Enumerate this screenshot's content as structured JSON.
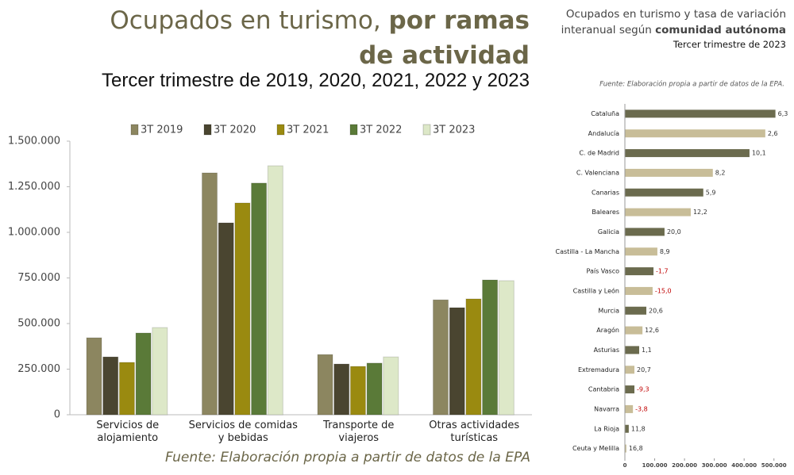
{
  "chart_data": [
    {
      "type": "bar",
      "title": "Ocupados en turismo,",
      "title_bold": "por ramas de actividad",
      "subtitle": "Tercer trimestre de 2019, 2020, 2021, 2022 y 2023",
      "source": "Fuente: Elaboración propia a partir de datos de la EPA",
      "categories": [
        "Servicios de alojamiento",
        "Servicios de comidas y bebidas",
        "Transporte de viajeros",
        "Otras actividades turísticas"
      ],
      "series": [
        {
          "name": "3T 2019",
          "color": "#8c8660",
          "values": [
            422000,
            1326000,
            330000,
            630000
          ]
        },
        {
          "name": "3T 2020",
          "color": "#4a4530",
          "values": [
            317000,
            1052000,
            278000,
            587000
          ]
        },
        {
          "name": "3T 2021",
          "color": "#9a8a10",
          "values": [
            287000,
            1161000,
            265000,
            635000
          ]
        },
        {
          "name": "3T 2022",
          "color": "#5a7a38",
          "values": [
            448000,
            1270000,
            283000,
            739000
          ]
        },
        {
          "name": "3T 2023",
          "color": "#dde8c8",
          "values": [
            478000,
            1365000,
            317000,
            735000
          ]
        }
      ],
      "ylim": [
        0,
        1500000
      ],
      "yticks": [
        0,
        {
          "value": 250000,
          "label": "250.000"
        },
        {
          "value": 500000,
          "label": "500.000"
        },
        {
          "value": 750000,
          "label": "750.000"
        },
        {
          "value": 1000000,
          "label": "1.000.000"
        },
        {
          "value": 1250000,
          "label": "1.250.000"
        },
        {
          "value": 1500000,
          "label": "1.500.000"
        }
      ],
      "grid": false
    },
    {
      "type": "bar",
      "orientation": "horizontal",
      "title": "Ocupados en turismo y tasa de variación interanual según",
      "title_bold": "comunidad autónoma",
      "subtitle": "Tercer trimestre de 2023",
      "source": "Fuente: Elaboración propia a partir de datos de la EPA.",
      "categories": [
        "Cataluña",
        "Andalucía",
        "C. de Madrid",
        "C. Valenciana",
        "Canarias",
        "Baleares",
        "Galicia",
        "Castilla - La Mancha",
        "País Vasco",
        "Castilla y León",
        "Murcia",
        "Aragón",
        "Asturias",
        "Extremadura",
        "Cantabria",
        "Navarra",
        "La Rioja",
        "Ceuta y Melilla"
      ],
      "values": [
        505000,
        471000,
        418000,
        295000,
        263000,
        221000,
        133000,
        109000,
        96000,
        93000,
        72000,
        59000,
        48000,
        32000,
        32000,
        27000,
        13000,
        5000
      ],
      "colors": [
        "#6b6b4e",
        "#c8bd98",
        "#6b6b4e",
        "#c8bd98",
        "#6b6b4e",
        "#c8bd98",
        "#6b6b4e",
        "#c8bd98",
        "#6b6b4e",
        "#c8bd98",
        "#6b6b4e",
        "#c8bd98",
        "#6b6b4e",
        "#c8bd98",
        "#6b6b4e",
        "#c8bd98",
        "#6b6b4e",
        "#c8bd98"
      ],
      "rates": [
        6.3,
        2.6,
        10.1,
        8.2,
        5.9,
        12.2,
        20.0,
        8.9,
        -1.7,
        -15.0,
        20.6,
        12.6,
        1.1,
        20.7,
        -9.3,
        -3.8,
        11.8,
        16.8
      ],
      "rate_labels": [
        "6,3",
        "2,6",
        "10,1",
        "8,2",
        "5,9",
        "12,2",
        "20,0",
        "8,9",
        "-1,7",
        "-15,0",
        "20,6",
        "12,6",
        "1,1",
        "20,7",
        "-9,3",
        "-3,8",
        "11,8",
        "16,8"
      ],
      "xlim": [
        0,
        530000
      ],
      "xticks": [
        0,
        {
          "value": 100000,
          "label": "100.000"
        },
        {
          "value": 200000,
          "label": "200.000"
        },
        {
          "value": 300000,
          "label": "300.000"
        },
        {
          "value": 400000,
          "label": "400.000"
        },
        {
          "value": 500000,
          "label": "500.000"
        }
      ]
    }
  ]
}
